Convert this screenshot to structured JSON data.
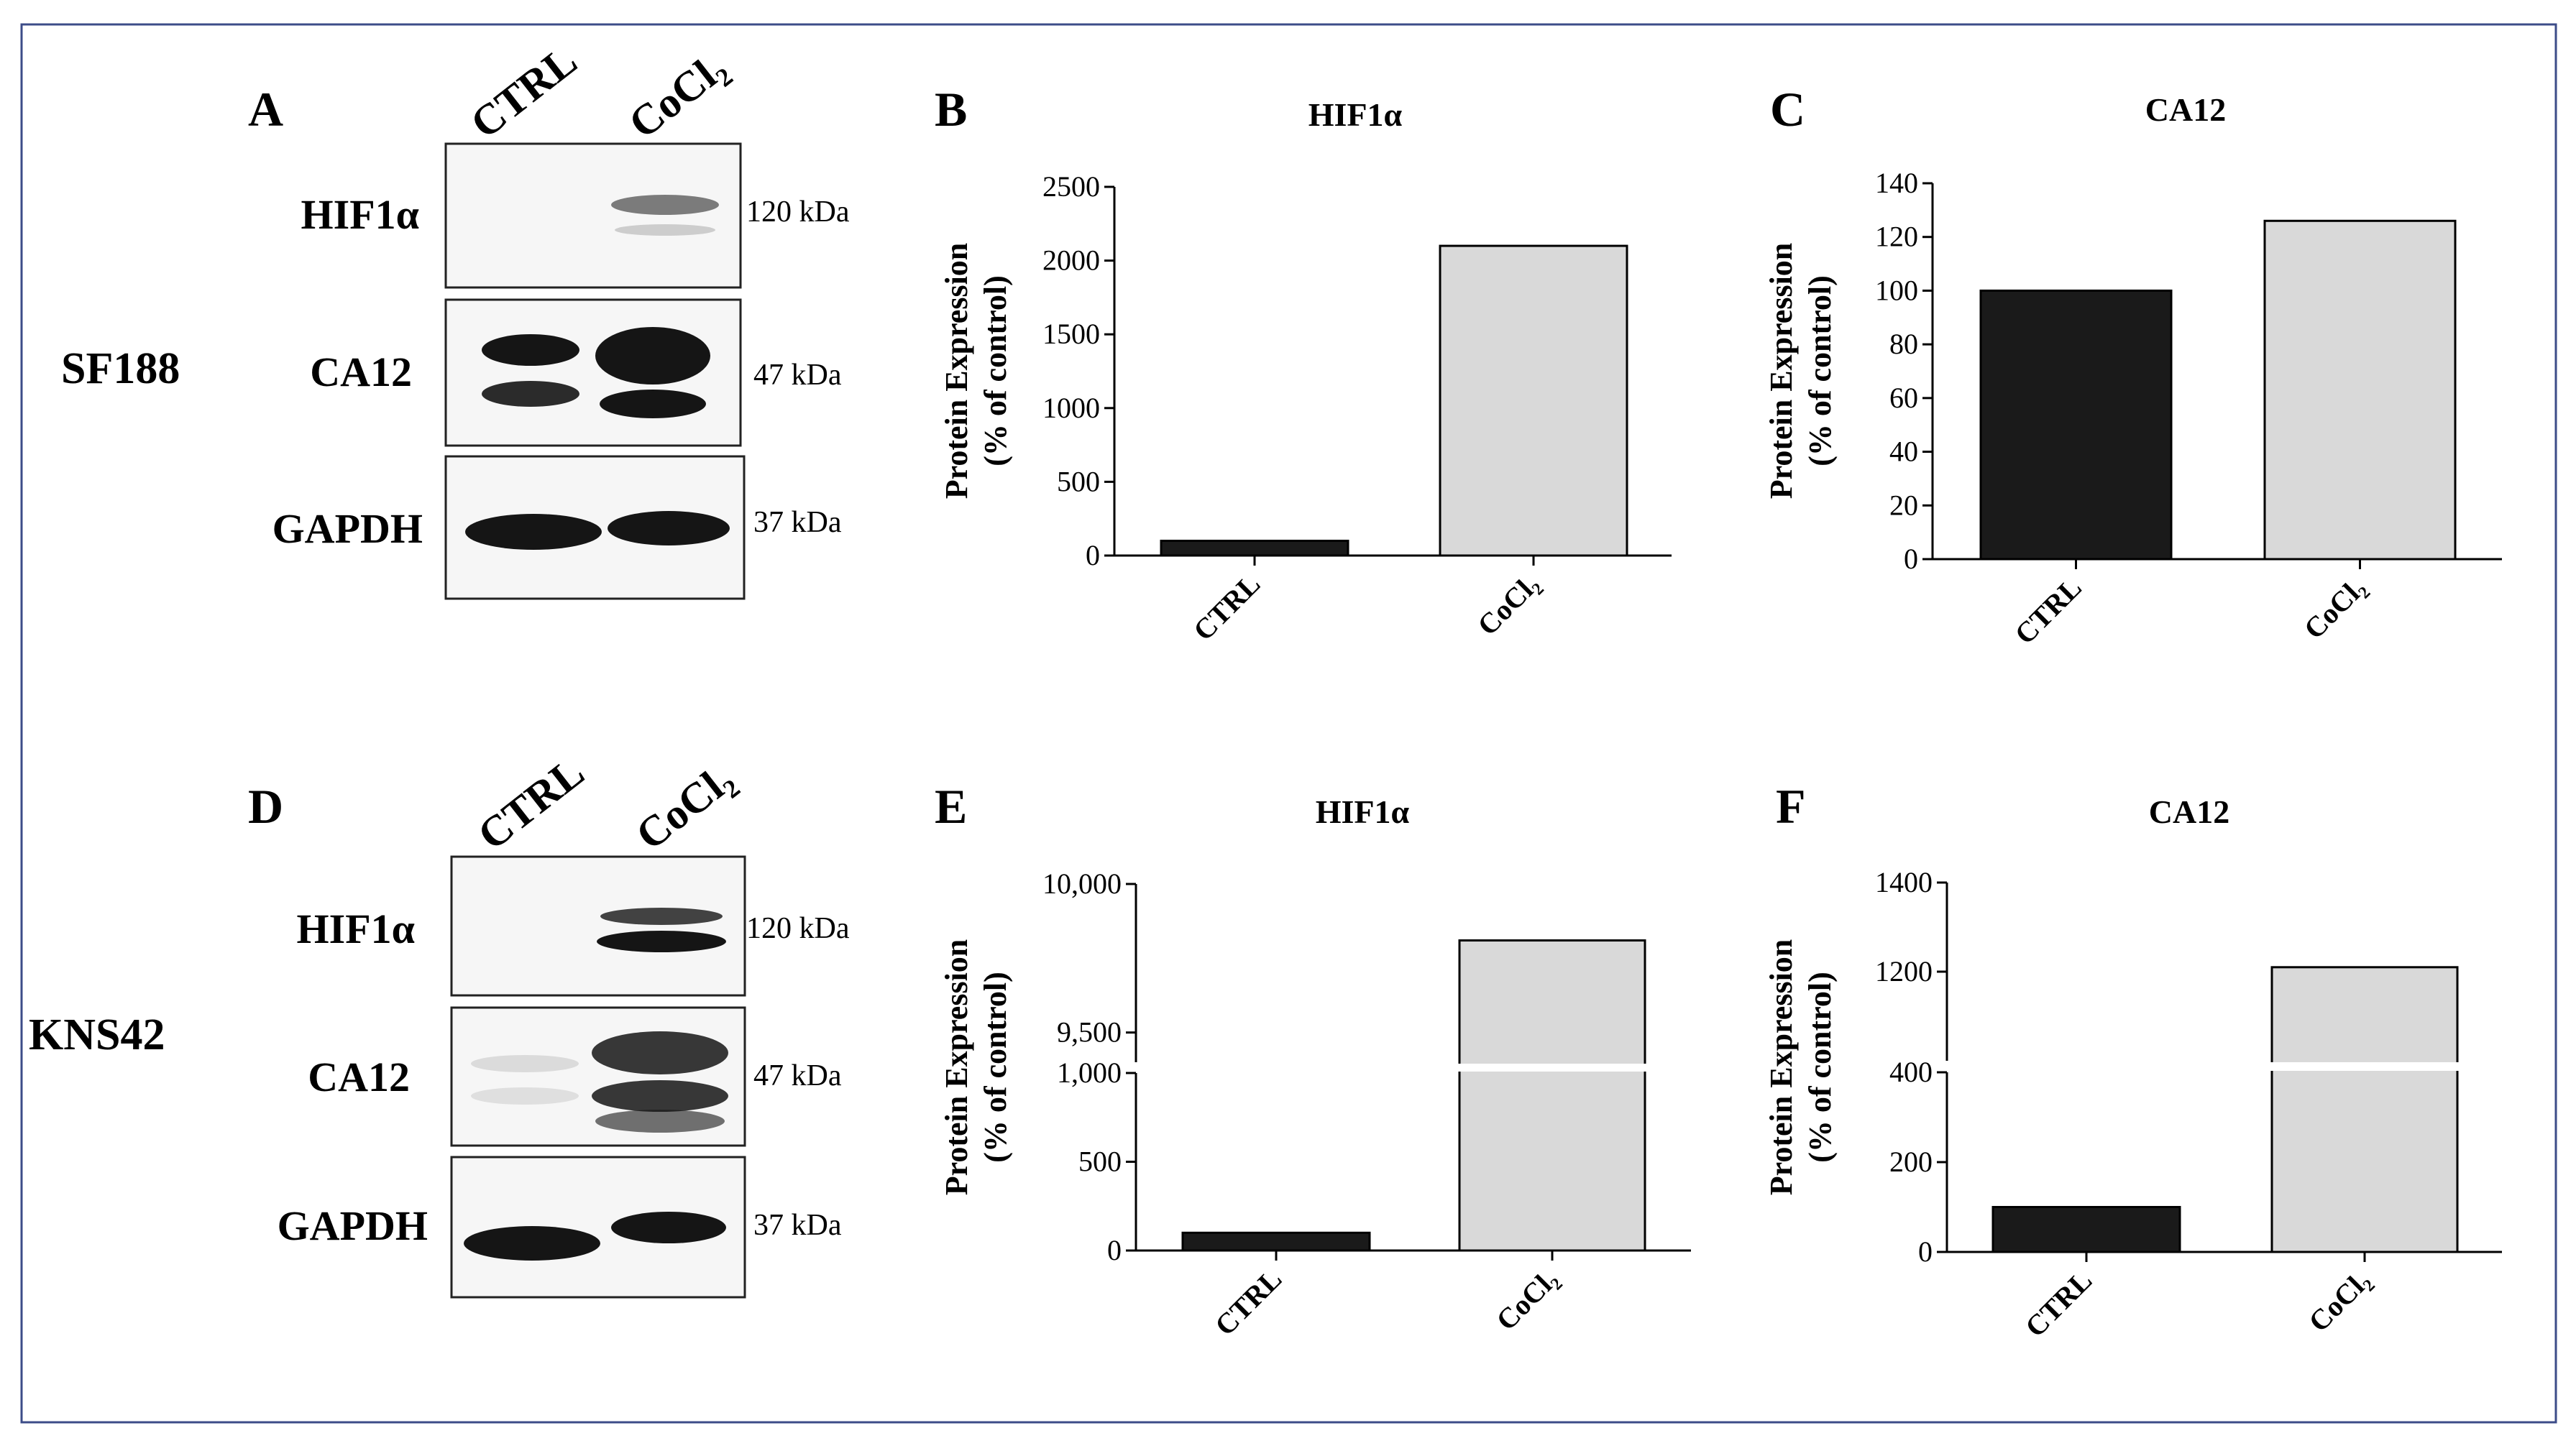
{
  "cell_lines": [
    "SF188",
    "KNS42"
  ],
  "blots": [
    {
      "letter": "A",
      "lanes": [
        "CTRL",
        "CoCl₂"
      ],
      "rows": [
        {
          "protein": "HIF1α",
          "kda": "120 kDa"
        },
        {
          "protein": "CA12",
          "kda": "47 kDa"
        },
        {
          "protein": "GAPDH",
          "kda": "37 kDa"
        }
      ]
    },
    {
      "letter": "D",
      "lanes": [
        "CTRL",
        "CoCl₂"
      ],
      "rows": [
        {
          "protein": "HIF1α",
          "kda": "120 kDa"
        },
        {
          "protein": "CA12",
          "kda": "47 kDa"
        },
        {
          "protein": "GAPDH",
          "kda": "37 kDa"
        }
      ]
    }
  ],
  "chart_data": [
    {
      "letter": "B",
      "type": "bar",
      "title": "HIF1α",
      "ylabel": [
        "Protein Expression",
        "(% of control)"
      ],
      "categories": [
        "CTRL",
        "CoCl₂"
      ],
      "values": [
        100,
        2100
      ],
      "ylim": [
        0,
        2500
      ],
      "ticks": [
        0,
        500,
        1000,
        1500,
        2000,
        2500
      ],
      "tick_labels": [
        "0",
        "500",
        "1000",
        "1500",
        "2000",
        "2500"
      ],
      "bar_colors": [
        "#1a1a1a",
        "#d9d9d9"
      ],
      "broken": false
    },
    {
      "letter": "C",
      "type": "bar",
      "title": "CA12",
      "ylabel": [
        "Protein Expression",
        "(% of control)"
      ],
      "categories": [
        "CTRL",
        "CoCl₂"
      ],
      "values": [
        100,
        126
      ],
      "ylim": [
        0,
        140
      ],
      "ticks": [
        0,
        20,
        40,
        60,
        80,
        100,
        120,
        140
      ],
      "tick_labels": [
        "0",
        "20",
        "40",
        "60",
        "80",
        "100",
        "120",
        "140"
      ],
      "bar_colors": [
        "#1a1a1a",
        "#d9d9d9"
      ],
      "broken": false
    },
    {
      "letter": "E",
      "type": "bar",
      "title": "HIF1α",
      "ylabel": [
        "Protein Expression",
        "(% of control)"
      ],
      "categories": [
        "CTRL",
        "CoCl₂"
      ],
      "values": [
        100,
        9810
      ],
      "broken": true,
      "lower_range": [
        0,
        1000
      ],
      "upper_range": [
        9400,
        10000
      ],
      "lower_ticks": [
        0,
        500,
        1000
      ],
      "lower_tick_labels": [
        "0",
        "500",
        "1,000"
      ],
      "upper_ticks": [
        9500,
        10000
      ],
      "upper_tick_labels": [
        "9,500",
        "10,000"
      ],
      "bar_colors": [
        "#1a1a1a",
        "#d9d9d9"
      ]
    },
    {
      "letter": "F",
      "type": "bar",
      "title": "CA12",
      "ylabel": [
        "Protein Expression",
        "(% of control)"
      ],
      "categories": [
        "CTRL",
        "CoCl₂"
      ],
      "values": [
        100,
        1210
      ],
      "broken": true,
      "lower_range": [
        0,
        400
      ],
      "upper_range": [
        1000,
        1400
      ],
      "lower_ticks": [
        0,
        200,
        400
      ],
      "lower_tick_labels": [
        "0",
        "200",
        "400"
      ],
      "upper_ticks": [
        1200,
        1400
      ],
      "upper_tick_labels": [
        "1200",
        "1400"
      ],
      "bar_colors": [
        "#1a1a1a",
        "#d9d9d9"
      ]
    }
  ]
}
